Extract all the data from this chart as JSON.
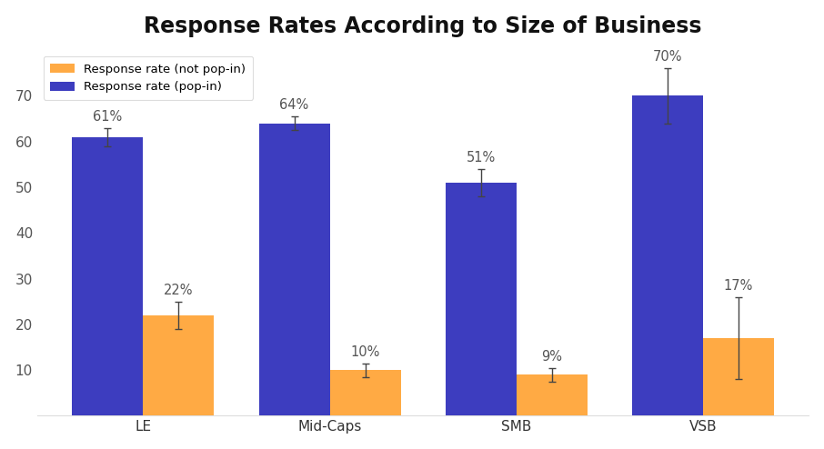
{
  "title": "Response Rates According to Size of Business",
  "categories": [
    "LE",
    "Mid-Caps",
    "SMB",
    "VSB"
  ],
  "pop_in_values": [
    61,
    64,
    51,
    70
  ],
  "not_pop_in_values": [
    22,
    10,
    9,
    17
  ],
  "pop_in_errors": [
    2,
    1.5,
    3,
    6
  ],
  "not_pop_in_errors": [
    3,
    1.5,
    1.5,
    9
  ],
  "pop_in_color": "#3D3DBF",
  "not_pop_in_color": "#FFAA44",
  "legend_label_not_pop_in": "Response rate (not pop-in)",
  "legend_label_pop_in": "Response rate (pop-in)",
  "ylim": [
    0,
    80
  ],
  "yticks": [
    0,
    10,
    20,
    30,
    40,
    50,
    60,
    70
  ],
  "bar_width": 0.38,
  "background_color": "#FFFFFF",
  "title_fontsize": 17,
  "label_fontsize": 10.5,
  "tick_fontsize": 11,
  "legend_fontsize": 9.5
}
